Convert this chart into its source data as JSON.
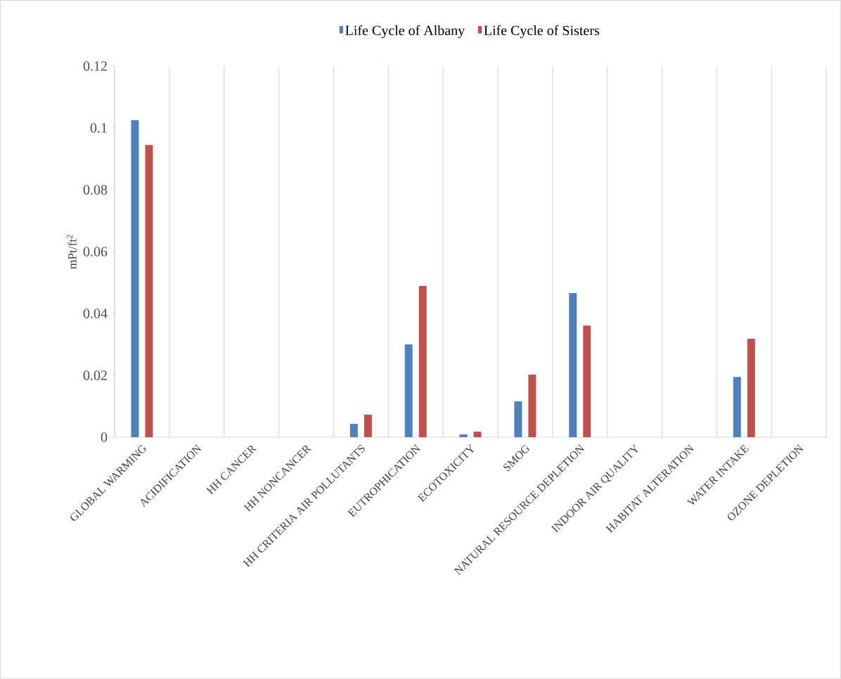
{
  "chart_data": {
    "type": "bar",
    "ylabel": "mPt/ft$^{2}$",
    "categories": [
      "GLOBAL WARMING",
      "ACIDIFICATION",
      "HH CANCER",
      "HH NONCANCER",
      "HH CRITERIA AIR POLLUTANTS",
      "EUTROPHICATION",
      "ECOTOXICITY",
      "SMOG",
      "NATURAL RESOURCE DEPLETION",
      "INDOOR AIR QUALITY",
      "HABITAT ALTERATION",
      "WATER INTAKE",
      "OZONE DEPLETION"
    ],
    "series": [
      {
        "name": "Life Cycle of Albany",
        "color": "#4f81bd",
        "values": [
          0.1025,
          0,
          0,
          0,
          0.0043,
          0.03,
          0.0009,
          0.0116,
          0.0466,
          0,
          0,
          0.0195,
          0
        ]
      },
      {
        "name": "Life Cycle of Sisters",
        "color": "#c0504d",
        "values": [
          0.0945,
          0,
          0,
          0,
          0.0073,
          0.0489,
          0.0018,
          0.0202,
          0.0361,
          0,
          0,
          0.0318,
          0
        ]
      }
    ],
    "ylim": [
      0,
      0.12
    ],
    "yticks": [
      0,
      0.02,
      0.04,
      0.06,
      0.08,
      0.1,
      0.12
    ],
    "grid": "x",
    "legend": "top"
  }
}
